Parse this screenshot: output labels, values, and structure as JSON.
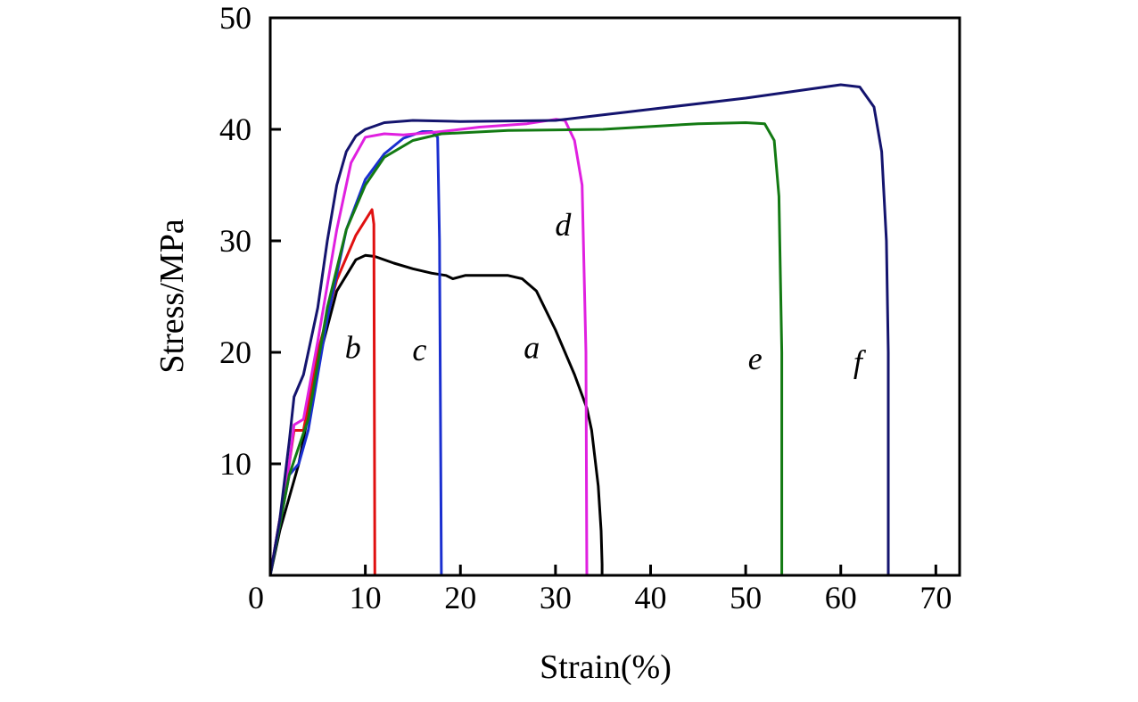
{
  "chart_data": {
    "type": "line",
    "xlabel": "Strain(%)",
    "ylabel": "Stress/MPa",
    "xlim": [
      0,
      72.5
    ],
    "ylim": [
      0,
      50
    ],
    "xticks": [
      10,
      20,
      30,
      40,
      50,
      60,
      70
    ],
    "yticks": [
      10,
      20,
      30,
      40,
      50
    ],
    "origin_label": "0",
    "grid": false,
    "series": [
      {
        "name": "a",
        "color": "#000000",
        "label_pos": [
          27.5,
          19.5
        ],
        "x": [
          0,
          1,
          3,
          5,
          7,
          9,
          10,
          11,
          13,
          15,
          17,
          18.5,
          19.2,
          20.5,
          25,
          26.5,
          28,
          30,
          32,
          33.3,
          33.8,
          34.5,
          34.8,
          34.9,
          34.9
        ],
        "y": [
          0,
          4,
          10,
          19,
          25.5,
          28.3,
          28.7,
          28.6,
          28,
          27.5,
          27.1,
          26.9,
          26.6,
          26.9,
          26.9,
          26.6,
          25.5,
          22,
          18,
          15,
          13,
          8,
          4,
          1,
          0
        ]
      },
      {
        "name": "b",
        "color": "#e01010",
        "label_pos": [
          8.7,
          19.5
        ],
        "x": [
          0,
          2,
          2.5,
          3.5,
          5,
          7,
          9,
          10.7,
          10.9,
          11
        ],
        "y": [
          0,
          10,
          13,
          13,
          20,
          26.5,
          30.5,
          32.8,
          31.5,
          0
        ]
      },
      {
        "name": "c",
        "color": "#1a2fd0",
        "label_pos": [
          15.7,
          19.3
        ],
        "x": [
          0,
          2,
          3,
          4,
          6,
          8,
          10,
          12,
          14,
          16,
          17,
          17.6,
          17.8,
          18
        ],
        "y": [
          0,
          9,
          10,
          13,
          23,
          31,
          35.5,
          37.8,
          39.2,
          39.8,
          39.8,
          39.3,
          30,
          0
        ]
      },
      {
        "name": "d",
        "color": "#e020e0",
        "label_pos": [
          30.8,
          30.5
        ],
        "x": [
          0,
          2,
          2.5,
          3.5,
          5,
          7,
          8.5,
          10,
          12,
          14,
          18,
          22,
          27,
          30,
          31,
          32,
          32.8,
          33.2,
          33.3
        ],
        "y": [
          0,
          10,
          13.5,
          14,
          21,
          31,
          37,
          39.3,
          39.6,
          39.5,
          39.8,
          40.2,
          40.5,
          40.9,
          40.8,
          39,
          35,
          20,
          0
        ]
      },
      {
        "name": "e",
        "color": "#137a13",
        "label_pos": [
          51,
          18.5
        ],
        "x": [
          0,
          2,
          4,
          6,
          8,
          10,
          12,
          15,
          18,
          25,
          35,
          45,
          50,
          52,
          53,
          53.5,
          53.8,
          53.8
        ],
        "y": [
          0,
          9,
          14,
          24,
          31,
          35,
          37.5,
          39,
          39.6,
          39.9,
          40,
          40.5,
          40.6,
          40.5,
          39,
          34,
          20,
          0
        ]
      },
      {
        "name": "f",
        "color": "#14146e",
        "label_pos": [
          61.8,
          18.2
        ],
        "x": [
          0,
          1,
          2,
          2.5,
          3.5,
          5,
          6,
          7,
          8,
          9,
          10,
          12,
          15,
          20,
          30,
          35,
          40,
          50,
          55,
          60,
          62,
          63.5,
          64.3,
          64.8,
          65,
          65
        ],
        "y": [
          0,
          5,
          12,
          16,
          18,
          24,
          30,
          35,
          38,
          39.4,
          40,
          40.6,
          40.8,
          40.7,
          40.8,
          41.3,
          41.8,
          42.8,
          43.4,
          44,
          43.8,
          42,
          38,
          30,
          20,
          0
        ]
      }
    ]
  }
}
